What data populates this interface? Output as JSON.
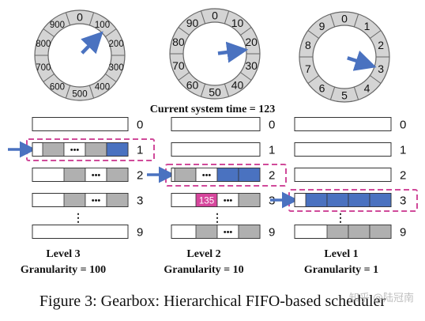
{
  "colors": {
    "dial_fill": "#d4d4d4",
    "dial_stroke": "#666666",
    "arrow": "#4a72c0",
    "slot_gray": "#b0b0b0",
    "slot_blue": "#4a72c0",
    "highlight_dash": "#d04a9a",
    "badge": "#d6469c"
  },
  "clocks": [
    {
      "name": "clock-level-3",
      "labels": [
        "0",
        "100",
        "200",
        "300",
        "400",
        "500",
        "600",
        "700",
        "800",
        "900"
      ],
      "pointer": 1.23
    },
    {
      "name": "clock-level-2",
      "labels": [
        "0",
        "10",
        "20",
        "30",
        "40",
        "50",
        "60",
        "70",
        "80",
        "90"
      ],
      "pointer": 2.3
    },
    {
      "name": "clock-level-1",
      "labels": [
        "0",
        "1",
        "2",
        "3",
        "4",
        "5",
        "6",
        "7",
        "8",
        "9"
      ],
      "pointer": 3.0
    }
  ],
  "current_time": "Current system time = 123",
  "ellipsis": "•••",
  "badge": "135",
  "levels": [
    {
      "title": "Level 3",
      "granularity": "Granularity = 100",
      "rows": [
        {
          "label": "0",
          "slots": []
        },
        {
          "label": "1",
          "slots": [
            "gray",
            "dots",
            "gray",
            "blue"
          ],
          "highlight": true,
          "arrow": true
        },
        {
          "label": "2",
          "slots": [
            "gray",
            "dots",
            "gray"
          ]
        },
        {
          "label": "3",
          "slots": [
            "gray",
            "dots",
            "gray"
          ]
        },
        {
          "label": "⋮",
          "vdots": true
        },
        {
          "label": "9",
          "slots": []
        }
      ]
    },
    {
      "title": "Level 2",
      "granularity": "Granularity = 10",
      "rows": [
        {
          "label": "0",
          "slots": []
        },
        {
          "label": "1",
          "slots": []
        },
        {
          "label": "2",
          "slots": [
            "gray",
            "dots",
            "blue",
            "blue"
          ],
          "highlight": true,
          "arrow": true
        },
        {
          "label": "3",
          "slots": [
            "badge",
            "dots",
            "gray"
          ]
        },
        {
          "label": "⋮",
          "vdots": true
        },
        {
          "label": "9",
          "slots": [
            "gray",
            "dots",
            "gray"
          ]
        }
      ]
    },
    {
      "title": "Level 1",
      "granularity": "Granularity = 1",
      "rows": [
        {
          "label": "0",
          "slots": []
        },
        {
          "label": "1",
          "slots": []
        },
        {
          "label": "2",
          "slots": []
        },
        {
          "label": "3",
          "slots": [
            "blue",
            "blue",
            "blue",
            "blue"
          ],
          "highlight": true,
          "arrow": true
        },
        {
          "label": "⋮",
          "vdots": true
        },
        {
          "label": "9",
          "slots": [
            "gray",
            "gray",
            "gray"
          ]
        }
      ]
    }
  ],
  "caption": "Figure 3: Gearbox: Hierarchical FIFO-based scheduler",
  "watermark": "知乎 @陆冠南"
}
